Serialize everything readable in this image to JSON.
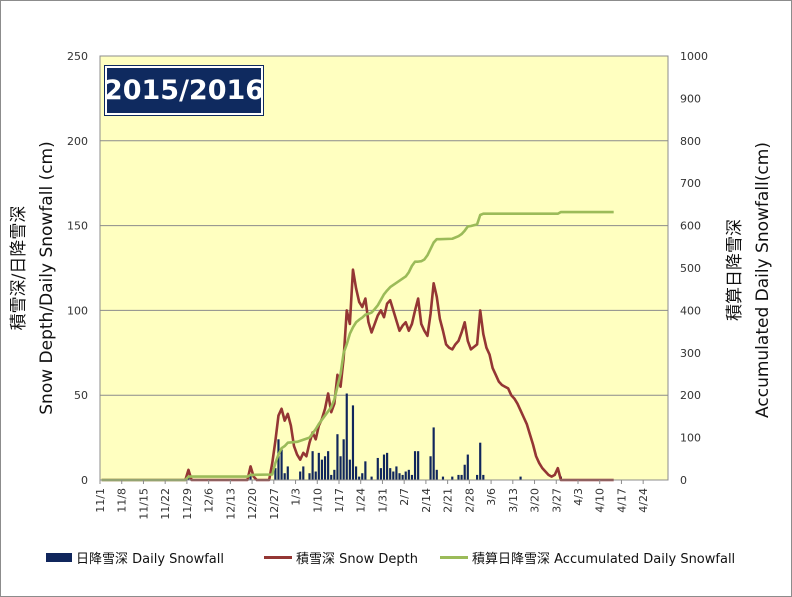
{
  "chart_data": {
    "type": "bar+line",
    "badge": "2015/2016",
    "ylabel_left": "積雪深/日降雪深 Snow Depth/Daily Snowfall (cm)",
    "ylabel_left_line1": "積雪深/日降雪深",
    "ylabel_left_line2": "Snow Depth/Daily Snowfall (cm)",
    "ylabel_right_line1": "積算日降雪深",
    "ylabel_right_line2": "Accumulated Daily Snowfall(cm)",
    "ylim_left": [
      0,
      250
    ],
    "ylim_right": [
      0,
      1000
    ],
    "yticks_left": [
      "0",
      "50",
      "100",
      "150",
      "200",
      "250"
    ],
    "yticks_right": [
      "0",
      "100",
      "200",
      "300",
      "400",
      "500",
      "600",
      "700",
      "800",
      "900",
      "1000"
    ],
    "x_start": "11/1",
    "x_days": 183,
    "xticks": [
      "11/1",
      "11/8",
      "11/15",
      "11/22",
      "11/29",
      "12/6",
      "12/13",
      "12/20",
      "12/27",
      "1/3",
      "1/10",
      "1/17",
      "1/24",
      "1/31",
      "2/7",
      "2/14",
      "2/21",
      "2/28",
      "3/6",
      "3/13",
      "3/20",
      "3/27",
      "4/3",
      "4/10",
      "4/17",
      "4/24"
    ],
    "grid": true,
    "legend_position": "bottom",
    "series": [
      {
        "name": "日降雪深 Daily Snowfall",
        "type": "bar",
        "axis": "left",
        "color": "#10265c",
        "points": [
          [
            "11/29",
            2
          ],
          [
            "12/19",
            3
          ],
          [
            "12/27",
            7
          ],
          [
            "12/28",
            24
          ],
          [
            "12/29",
            18
          ],
          [
            "12/30",
            4
          ],
          [
            "12/31",
            8
          ],
          [
            "1/4",
            5
          ],
          [
            "1/5",
            8
          ],
          [
            "1/7",
            4
          ],
          [
            "1/8",
            17
          ],
          [
            "1/9",
            5
          ],
          [
            "1/10",
            16
          ],
          [
            "1/11",
            12
          ],
          [
            "1/12",
            14
          ],
          [
            "1/13",
            17
          ],
          [
            "1/14",
            3
          ],
          [
            "1/15",
            6
          ],
          [
            "1/16",
            27
          ],
          [
            "1/17",
            14
          ],
          [
            "1/18",
            24
          ],
          [
            "1/19",
            51
          ],
          [
            "1/20",
            12
          ],
          [
            "1/21",
            44
          ],
          [
            "1/22",
            8
          ],
          [
            "1/23",
            2
          ],
          [
            "1/24",
            4
          ],
          [
            "1/25",
            11
          ],
          [
            "1/27",
            2
          ],
          [
            "1/29",
            13
          ],
          [
            "1/30",
            7
          ],
          [
            "1/31",
            15
          ],
          [
            "2/1",
            16
          ],
          [
            "2/2",
            7
          ],
          [
            "2/3",
            5
          ],
          [
            "2/4",
            8
          ],
          [
            "2/5",
            4
          ],
          [
            "2/6",
            3
          ],
          [
            "2/7",
            5
          ],
          [
            "2/8",
            6
          ],
          [
            "2/9",
            3
          ],
          [
            "2/10",
            17
          ],
          [
            "2/11",
            17
          ],
          [
            "2/15",
            14
          ],
          [
            "2/16",
            31
          ],
          [
            "2/17",
            6
          ],
          [
            "2/19",
            2
          ],
          [
            "2/22",
            2
          ],
          [
            "2/24",
            3
          ],
          [
            "2/25",
            3
          ],
          [
            "2/26",
            9
          ],
          [
            "2/27",
            15
          ],
          [
            "3/1",
            3
          ],
          [
            "3/2",
            22
          ],
          [
            "3/3",
            3
          ],
          [
            "3/15",
            2
          ],
          [
            "3/28",
            2
          ]
        ]
      },
      {
        "name": "積雪深 Snow Depth",
        "type": "line",
        "axis": "left",
        "color": "#943634",
        "points": [
          [
            "11/1",
            0
          ],
          [
            "11/28",
            0
          ],
          [
            "11/29",
            6
          ],
          [
            "11/30",
            0
          ],
          [
            "12/18",
            0
          ],
          [
            "12/19",
            8
          ],
          [
            "12/20",
            2
          ],
          [
            "12/21",
            0
          ],
          [
            "12/25",
            0
          ],
          [
            "12/26",
            10
          ],
          [
            "12/27",
            23
          ],
          [
            "12/28",
            38
          ],
          [
            "12/29",
            42
          ],
          [
            "12/30",
            35
          ],
          [
            "12/31",
            39
          ],
          [
            "1/1",
            32
          ],
          [
            "1/2",
            20
          ],
          [
            "1/3",
            15
          ],
          [
            "1/4",
            12
          ],
          [
            "1/5",
            16
          ],
          [
            "1/6",
            14
          ],
          [
            "1/7",
            22
          ],
          [
            "1/8",
            28
          ],
          [
            "1/9",
            24
          ],
          [
            "1/10",
            32
          ],
          [
            "1/11",
            36
          ],
          [
            "1/12",
            42
          ],
          [
            "1/13",
            51
          ],
          [
            "1/14",
            40
          ],
          [
            "1/15",
            45
          ],
          [
            "1/16",
            62
          ],
          [
            "1/17",
            55
          ],
          [
            "1/18",
            72
          ],
          [
            "1/19",
            100
          ],
          [
            "1/20",
            92
          ],
          [
            "1/21",
            124
          ],
          [
            "1/22",
            113
          ],
          [
            "1/23",
            105
          ],
          [
            "1/24",
            102
          ],
          [
            "1/25",
            107
          ],
          [
            "1/26",
            93
          ],
          [
            "1/27",
            87
          ],
          [
            "1/28",
            92
          ],
          [
            "1/29",
            97
          ],
          [
            "1/30",
            100
          ],
          [
            "1/31",
            96
          ],
          [
            "2/1",
            104
          ],
          [
            "2/2",
            106
          ],
          [
            "2/3",
            100
          ],
          [
            "2/4",
            94
          ],
          [
            "2/5",
            88
          ],
          [
            "2/6",
            91
          ],
          [
            "2/7",
            93
          ],
          [
            "2/8",
            88
          ],
          [
            "2/9",
            92
          ],
          [
            "2/10",
            100
          ],
          [
            "2/11",
            107
          ],
          [
            "2/12",
            92
          ],
          [
            "2/13",
            88
          ],
          [
            "2/14",
            85
          ],
          [
            "2/15",
            98
          ],
          [
            "2/16",
            116
          ],
          [
            "2/17",
            108
          ],
          [
            "2/18",
            95
          ],
          [
            "2/19",
            88
          ],
          [
            "2/20",
            80
          ],
          [
            "2/21",
            78
          ],
          [
            "2/22",
            77
          ],
          [
            "2/23",
            80
          ],
          [
            "2/24",
            82
          ],
          [
            "2/25",
            87
          ],
          [
            "2/26",
            93
          ],
          [
            "2/27",
            82
          ],
          [
            "2/28",
            77
          ],
          [
            "3/1",
            80
          ],
          [
            "3/2",
            100
          ],
          [
            "3/3",
            86
          ],
          [
            "3/4",
            78
          ],
          [
            "3/5",
            74
          ],
          [
            "3/6",
            66
          ],
          [
            "3/7",
            62
          ],
          [
            "3/8",
            58
          ],
          [
            "3/9",
            56
          ],
          [
            "3/10",
            55
          ],
          [
            "3/11",
            54
          ],
          [
            "3/12",
            50
          ],
          [
            "3/13",
            48
          ],
          [
            "3/14",
            45
          ],
          [
            "3/15",
            41
          ],
          [
            "3/16",
            37
          ],
          [
            "3/17",
            33
          ],
          [
            "3/18",
            27
          ],
          [
            "3/19",
            21
          ],
          [
            "3/20",
            14
          ],
          [
            "3/21",
            10
          ],
          [
            "3/22",
            7
          ],
          [
            "3/23",
            5
          ],
          [
            "3/24",
            3
          ],
          [
            "3/25",
            2
          ],
          [
            "3/26",
            3
          ],
          [
            "3/27",
            7
          ],
          [
            "3/28",
            0
          ],
          [
            "4/14",
            0
          ]
        ]
      },
      {
        "name": "積算日降雪深 Accumulated Daily Snowfall",
        "type": "line",
        "axis": "right",
        "color": "#9bbb59",
        "points": [
          [
            "11/1",
            0
          ],
          [
            "11/28",
            0
          ],
          [
            "11/29",
            8
          ],
          [
            "12/18",
            8
          ],
          [
            "12/19",
            12
          ],
          [
            "12/26",
            13
          ],
          [
            "12/27",
            40
          ],
          [
            "12/28",
            60
          ],
          [
            "12/29",
            75
          ],
          [
            "12/30",
            80
          ],
          [
            "12/31",
            88
          ],
          [
            "1/3",
            90
          ],
          [
            "1/5",
            95
          ],
          [
            "1/7",
            100
          ],
          [
            "1/8",
            110
          ],
          [
            "1/9",
            120
          ],
          [
            "1/10",
            132
          ],
          [
            "1/11",
            142
          ],
          [
            "1/12",
            152
          ],
          [
            "1/13",
            162
          ],
          [
            "1/14",
            172
          ],
          [
            "1/15",
            190
          ],
          [
            "1/16",
            220
          ],
          [
            "1/17",
            250
          ],
          [
            "1/18",
            300
          ],
          [
            "1/19",
            320
          ],
          [
            "1/20",
            345
          ],
          [
            "1/21",
            360
          ],
          [
            "1/22",
            372
          ],
          [
            "1/23",
            378
          ],
          [
            "1/24",
            383
          ],
          [
            "1/25",
            390
          ],
          [
            "1/26",
            392
          ],
          [
            "1/27",
            395
          ],
          [
            "1/28",
            403
          ],
          [
            "1/29",
            412
          ],
          [
            "1/30",
            425
          ],
          [
            "1/31",
            438
          ],
          [
            "2/1",
            447
          ],
          [
            "2/2",
            455
          ],
          [
            "2/3",
            460
          ],
          [
            "2/4",
            465
          ],
          [
            "2/5",
            470
          ],
          [
            "2/6",
            475
          ],
          [
            "2/7",
            480
          ],
          [
            "2/8",
            490
          ],
          [
            "2/9",
            505
          ],
          [
            "2/10",
            515
          ],
          [
            "2/11",
            515
          ],
          [
            "2/12",
            516
          ],
          [
            "2/13",
            520
          ],
          [
            "2/14",
            530
          ],
          [
            "2/15",
            545
          ],
          [
            "2/16",
            560
          ],
          [
            "2/17",
            568
          ],
          [
            "2/18",
            568
          ],
          [
            "2/22",
            569
          ],
          [
            "2/24",
            575
          ],
          [
            "2/25",
            580
          ],
          [
            "2/26",
            588
          ],
          [
            "2/27",
            598
          ],
          [
            "2/28",
            599
          ],
          [
            "3/1",
            603
          ],
          [
            "3/2",
            625
          ],
          [
            "3/3",
            628
          ],
          [
            "3/27",
            628
          ],
          [
            "3/28",
            632
          ],
          [
            "4/14",
            632
          ]
        ]
      }
    ]
  }
}
